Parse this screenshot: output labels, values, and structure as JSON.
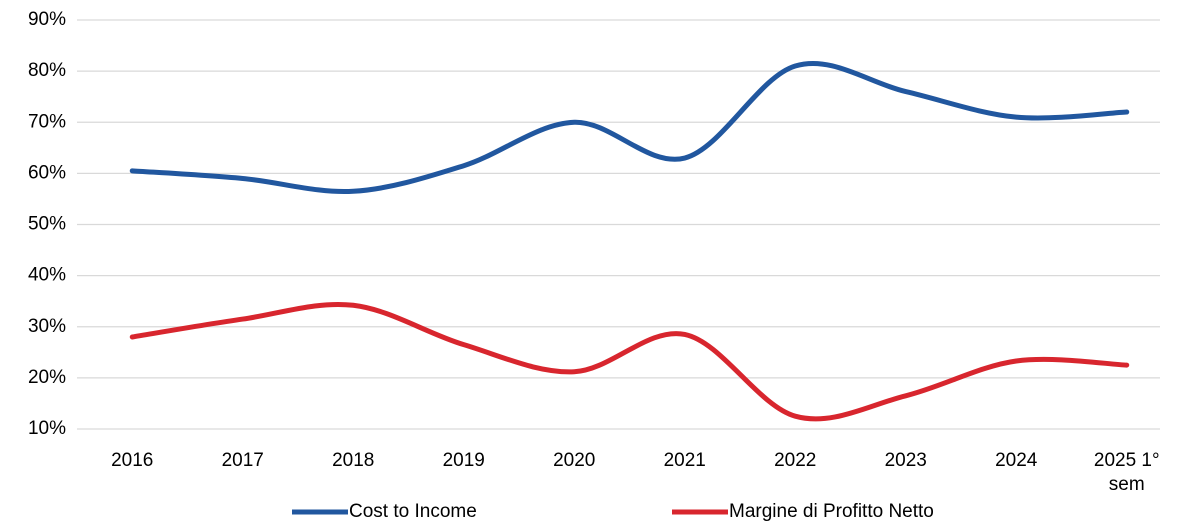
{
  "chart_data": {
    "type": "line",
    "categories": [
      "2016",
      "2017",
      "2018",
      "2019",
      "2020",
      "2021",
      "2022",
      "2023",
      "2024",
      "2025 1° sem"
    ],
    "series": [
      {
        "name": "Cost to Income",
        "color": "#21579f",
        "values": [
          60.5,
          59,
          56.5,
          61.5,
          70,
          63,
          81,
          76,
          71,
          72
        ]
      },
      {
        "name": "Margine di Profitto Netto",
        "color": "#d8262e",
        "values": [
          28,
          31.5,
          34.2,
          26.5,
          21.2,
          28.5,
          12.5,
          16.5,
          23.3,
          22.5
        ]
      }
    ],
    "ylim": [
      10,
      90
    ],
    "yticks": [
      {
        "value": 10,
        "label": "10%"
      },
      {
        "value": 20,
        "label": "20%"
      },
      {
        "value": 30,
        "label": "30%"
      },
      {
        "value": 40,
        "label": "40%"
      },
      {
        "value": 50,
        "label": "50%"
      },
      {
        "value": 60,
        "label": "60%"
      },
      {
        "value": 70,
        "label": "70%"
      },
      {
        "value": 80,
        "label": "80%"
      },
      {
        "value": 90,
        "label": "90%"
      }
    ],
    "grid": true,
    "smooth": true,
    "legend": "bottom"
  }
}
